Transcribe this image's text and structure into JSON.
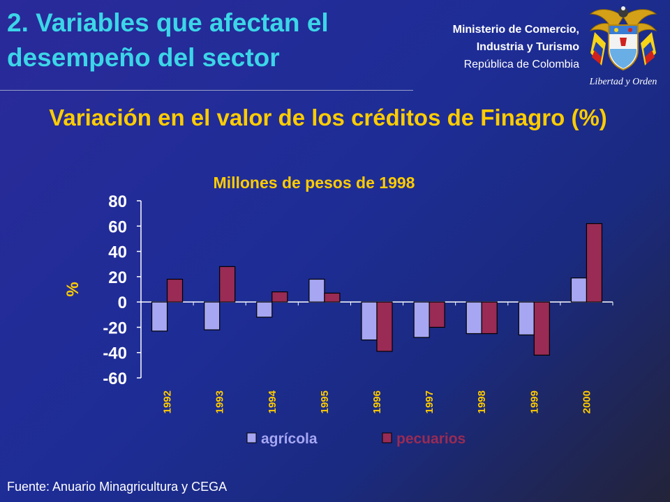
{
  "header": {
    "title": "2. Variables que afectan el desempeño del sector",
    "ministry_line1": "Ministerio de Comercio,",
    "ministry_line2": "Industria y Turismo",
    "ministry_line3": "República de Colombia",
    "emblem_motto": "Libertad y Orden"
  },
  "footer": {
    "source": "Fuente: Anuario Minagricultura y CEGA"
  },
  "colors": {
    "title": "#3cd6e8",
    "chart_title": "#ffcc00",
    "agricola": "#a6a6f2",
    "pecuarios": "#992b54",
    "axis": "#ffffff"
  },
  "chart_data": {
    "type": "bar",
    "title": "Variación en el valor de los créditos de Finagro (%)",
    "subtitle": "Millones de pesos de 1998",
    "ylabel": "%",
    "ylim": [
      -60,
      80
    ],
    "yticks": [
      80,
      60,
      40,
      20,
      0,
      -20,
      -40,
      -60
    ],
    "categories": [
      "1992",
      "1993",
      "1994",
      "1995",
      "1996",
      "1997",
      "1998",
      "1999",
      "2000"
    ],
    "series": [
      {
        "name": "agrícola",
        "values": [
          -23,
          -22,
          -12,
          18,
          -30,
          -28,
          -25,
          -26,
          19
        ]
      },
      {
        "name": "pecuarios",
        "values": [
          18,
          28,
          8,
          7,
          -39,
          -20,
          -25,
          -42,
          62
        ]
      }
    ],
    "legend_position": "bottom",
    "grid": false
  }
}
